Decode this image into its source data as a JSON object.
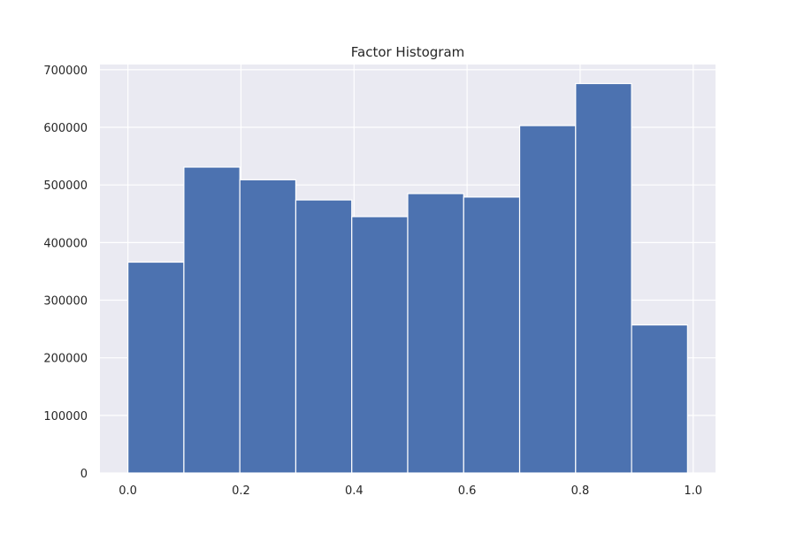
{
  "chart_data": {
    "type": "bar",
    "title": "Factor Histogram",
    "xlabel": "",
    "ylabel": "",
    "bins": [
      {
        "x0": 0.0,
        "x1": 0.099,
        "value": 366000
      },
      {
        "x0": 0.099,
        "x1": 0.198,
        "value": 531000
      },
      {
        "x0": 0.198,
        "x1": 0.297,
        "value": 509000
      },
      {
        "x0": 0.297,
        "x1": 0.396,
        "value": 474000
      },
      {
        "x0": 0.396,
        "x1": 0.495,
        "value": 445000
      },
      {
        "x0": 0.495,
        "x1": 0.594,
        "value": 485000
      },
      {
        "x0": 0.594,
        "x1": 0.693,
        "value": 479000
      },
      {
        "x0": 0.693,
        "x1": 0.792,
        "value": 603000
      },
      {
        "x0": 0.792,
        "x1": 0.891,
        "value": 676000
      },
      {
        "x0": 0.891,
        "x1": 0.99,
        "value": 257000
      }
    ],
    "xlim": [
      -0.0495,
      1.0395
    ],
    "ylim": [
      0,
      709000
    ],
    "xticks": [
      0.0,
      0.2,
      0.4,
      0.6,
      0.8,
      1.0
    ],
    "xtick_labels": [
      "0.0",
      "0.2",
      "0.4",
      "0.6",
      "0.8",
      "1.0"
    ],
    "yticks": [
      0,
      100000,
      200000,
      300000,
      400000,
      500000,
      600000,
      700000
    ],
    "ytick_labels": [
      "0",
      "100000",
      "200000",
      "300000",
      "400000",
      "500000",
      "600000",
      "700000"
    ],
    "grid": true,
    "colors": {
      "bar": "#4c72b0",
      "bar_edge": "#ffffff",
      "plot_background": "#eaeaf2",
      "grid": "#ffffff"
    }
  }
}
